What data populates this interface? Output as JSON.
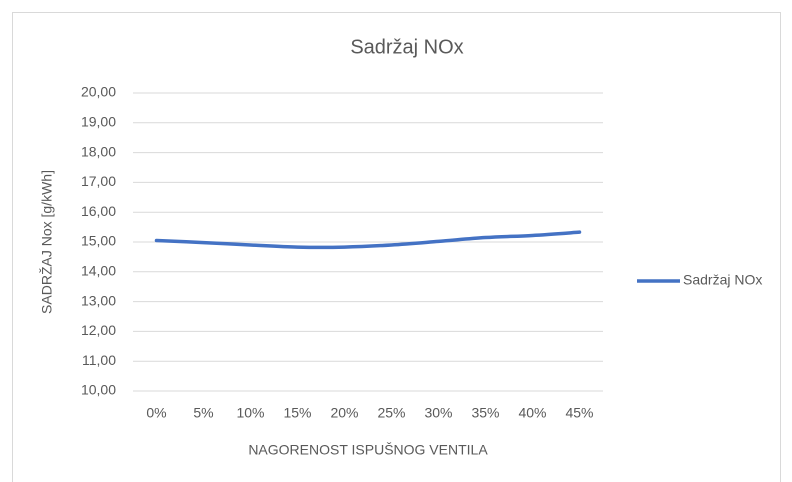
{
  "chart_data": {
    "type": "line",
    "title": "Sadržaj NOx",
    "x_label": "NAGORENOST ISPUŠNOG VENTILA",
    "y_label": "SADRŽAJ Nox [g/kWh]",
    "categories": [
      "0%",
      "5%",
      "10%",
      "15%",
      "20%",
      "25%",
      "30%",
      "35%",
      "40%",
      "45%"
    ],
    "series": [
      {
        "name": "Sadržaj NOx",
        "color": "#4472c4",
        "values": [
          15.05,
          14.98,
          14.9,
          14.83,
          14.83,
          14.9,
          15.02,
          15.15,
          15.22,
          15.33
        ]
      }
    ],
    "ylim": [
      10,
      20
    ],
    "yticks": [
      {
        "value": 10,
        "label": "10,00"
      },
      {
        "value": 11,
        "label": "11,00"
      },
      {
        "value": 12,
        "label": "12,00"
      },
      {
        "value": 13,
        "label": "13,00"
      },
      {
        "value": 14,
        "label": "14,00"
      },
      {
        "value": 15,
        "label": "15,00"
      },
      {
        "value": 16,
        "label": "16,00"
      },
      {
        "value": 17,
        "label": "17,00"
      },
      {
        "value": 18,
        "label": "18,00"
      },
      {
        "value": 19,
        "label": "19,00"
      },
      {
        "value": 20,
        "label": "20,00"
      }
    ],
    "grid": true,
    "legend": "right"
  }
}
